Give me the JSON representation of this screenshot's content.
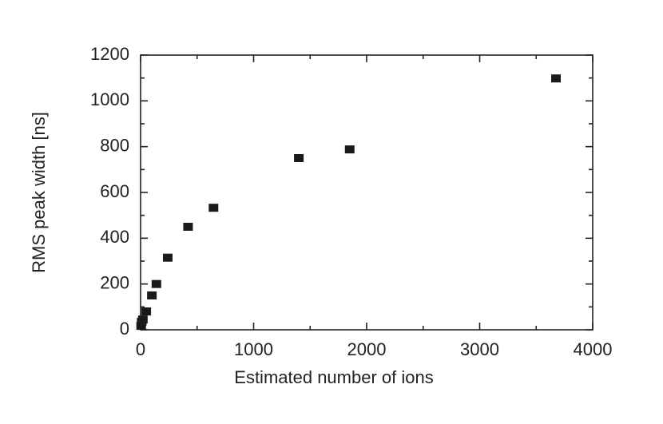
{
  "chart_data": {
    "type": "scatter",
    "xlabel": "Estimated number of ions",
    "ylabel": "RMS peak width [ns]",
    "x": [
      5,
      10,
      20,
      50,
      100,
      140,
      240,
      420,
      645,
      1400,
      1850,
      3675
    ],
    "values": [
      17,
      35,
      45,
      80,
      150,
      200,
      315,
      450,
      533,
      750,
      788,
      1098
    ],
    "color": "#1a1a1a",
    "xlim": [
      0,
      4000
    ],
    "xticks": [
      0,
      1000,
      2000,
      3000,
      4000
    ],
    "ylim": [
      0,
      1200
    ],
    "yticks": [
      0,
      200,
      400,
      600,
      800,
      1000,
      1200
    ]
  }
}
